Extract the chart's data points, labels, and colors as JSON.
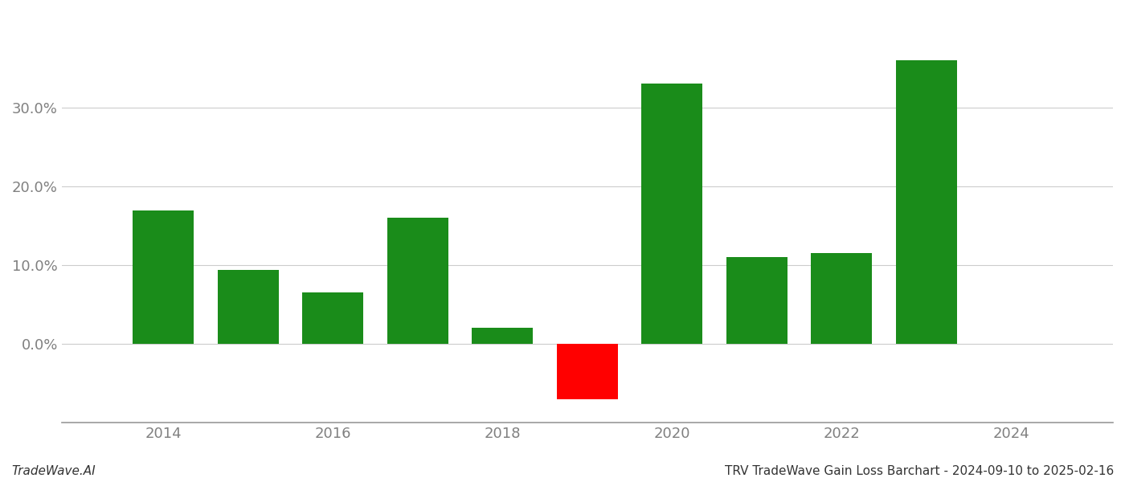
{
  "bar_data": [
    {
      "year": 2014,
      "value": 0.169
    },
    {
      "year": 2015,
      "value": 0.094
    },
    {
      "year": 2016,
      "value": 0.065
    },
    {
      "year": 2017,
      "value": 0.16
    },
    {
      "year": 2018,
      "value": 0.02
    },
    {
      "year": 2019,
      "value": -0.07
    },
    {
      "year": 2020,
      "value": 0.33
    },
    {
      "year": 2021,
      "value": 0.11
    },
    {
      "year": 2022,
      "value": 0.115
    },
    {
      "year": 2023,
      "value": 0.36
    }
  ],
  "green_color": "#1a8c1a",
  "red_color": "#ff0000",
  "grid_color": "#cccccc",
  "background_color": "#ffffff",
  "text_color": "#808080",
  "axis_color": "#999999",
  "footer_left": "TradeWave.AI",
  "footer_right": "TRV TradeWave Gain Loss Barchart - 2024-09-10 to 2025-02-16",
  "ylim_min": -0.1,
  "ylim_max": 0.415,
  "yticks": [
    0.0,
    0.1,
    0.2,
    0.3
  ],
  "xtick_positions": [
    2014,
    2016,
    2018,
    2020,
    2022,
    2024
  ],
  "xtick_labels": [
    "2014",
    "2016",
    "2018",
    "2020",
    "2022",
    "2024"
  ],
  "xlim_min": 2012.8,
  "xlim_max": 2025.2,
  "bar_width": 0.72,
  "footer_left_color": "#333333",
  "footer_right_color": "#333333",
  "footer_fontsize": 11
}
